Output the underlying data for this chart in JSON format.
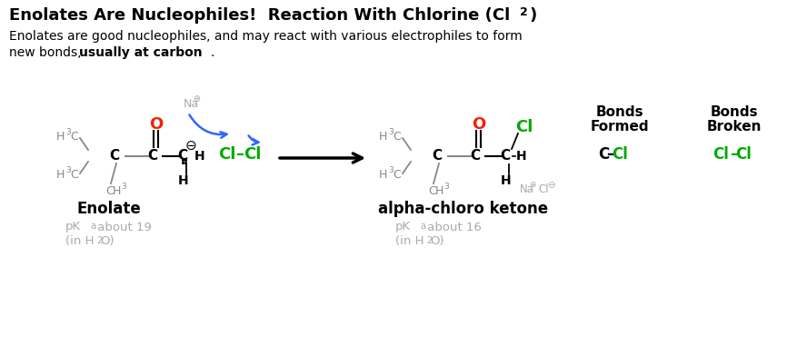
{
  "background_color": "#ffffff",
  "black": "#000000",
  "gray": "#888888",
  "light_gray": "#aaaaaa",
  "red": "#ee2200",
  "green": "#00aa00",
  "blue": "#3366ff",
  "title": "Enolates Are Nucleophiles!  Reaction With Chlorine (Cl",
  "title_sub": "2",
  "title_suffix": ")",
  "sub1": "Enolates are good nucleophiles, and may react with various electrophiles to form",
  "sub2a": "new bonds, ",
  "sub2b": "usually at carbon",
  "sub2c": ".",
  "label_enolate": "Enolate",
  "label_product": "alpha-chloro ketone",
  "pka_left_1": "pK",
  "pka_left_sub": "a",
  "pka_left_2": " about 19",
  "pka_left_3": "(in H",
  "pka_sub2": "2",
  "pka_left_4": "O)",
  "pka_right_2": " about 16",
  "bonds_formed_1": "Bonds",
  "bonds_formed_2": "Formed",
  "bonds_broken_1": "Bonds",
  "bonds_broken_2": "Broken",
  "c_cl_c": "C",
  "c_cl_dash": "–",
  "c_cl_cl": "Cl",
  "cl_cl_1": "Cl",
  "cl_cl_dash": "–",
  "cl_cl_2": "Cl"
}
